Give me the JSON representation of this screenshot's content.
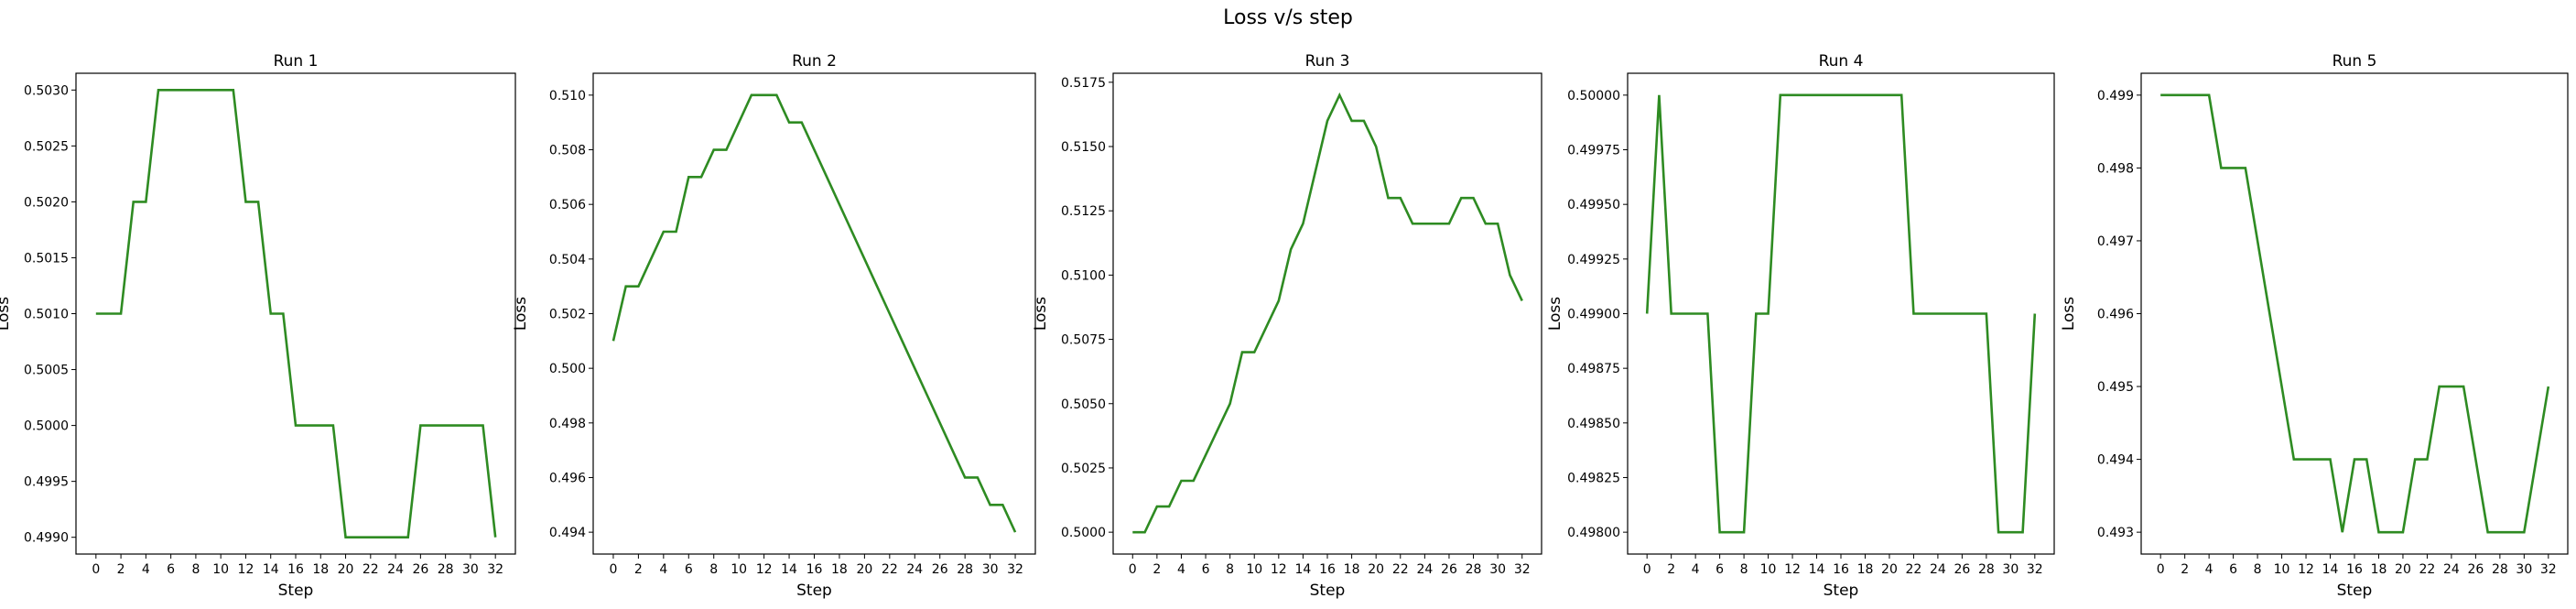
{
  "figure": {
    "title": "Loss v/s step"
  },
  "style": {
    "line_color": "#2e8b22",
    "axis_color": "#000000",
    "background": "#ffffff"
  },
  "chart_data": [
    {
      "type": "line",
      "title": "Run 1",
      "xlabel": "Step",
      "ylabel": "Loss",
      "xlim": [
        -1.6,
        33.6
      ],
      "ylim": [
        0.49885,
        0.50315
      ],
      "xticks": [
        0,
        2,
        4,
        6,
        8,
        10,
        12,
        14,
        16,
        18,
        20,
        22,
        24,
        26,
        28,
        30,
        32
      ],
      "yticks": [
        0.499,
        0.4995,
        0.5,
        0.5005,
        0.501,
        0.5015,
        0.502,
        0.5025,
        0.503
      ],
      "ytick_labels": [
        "0.4990",
        "0.4995",
        "0.5000",
        "0.5005",
        "0.5010",
        "0.5015",
        "0.5020",
        "0.5025",
        "0.5030"
      ],
      "x": [
        0,
        1,
        2,
        3,
        4,
        5,
        6,
        7,
        8,
        9,
        10,
        11,
        12,
        13,
        14,
        15,
        16,
        17,
        18,
        19,
        20,
        21,
        22,
        23,
        24,
        25,
        26,
        27,
        28,
        29,
        30,
        31,
        32
      ],
      "series": [
        {
          "values": [
            0.501,
            0.501,
            0.501,
            0.502,
            0.502,
            0.503,
            0.503,
            0.503,
            0.503,
            0.503,
            0.503,
            0.503,
            0.502,
            0.502,
            0.501,
            0.501,
            0.5,
            0.5,
            0.5,
            0.5,
            0.499,
            0.499,
            0.499,
            0.499,
            0.499,
            0.499,
            0.5,
            0.5,
            0.5,
            0.5,
            0.5,
            0.5,
            0.499
          ]
        }
      ]
    },
    {
      "type": "line",
      "title": "Run 2",
      "xlabel": "Step",
      "ylabel": "Loss",
      "xlim": [
        -1.6,
        33.6
      ],
      "ylim": [
        0.4932,
        0.5108
      ],
      "xticks": [
        0,
        2,
        4,
        6,
        8,
        10,
        12,
        14,
        16,
        18,
        20,
        22,
        24,
        26,
        28,
        30,
        32
      ],
      "yticks": [
        0.494,
        0.496,
        0.498,
        0.5,
        0.502,
        0.504,
        0.506,
        0.508,
        0.51
      ],
      "ytick_labels": [
        "0.494",
        "0.496",
        "0.498",
        "0.500",
        "0.502",
        "0.504",
        "0.506",
        "0.508",
        "0.510"
      ],
      "x": [
        0,
        1,
        2,
        3,
        4,
        5,
        6,
        7,
        8,
        9,
        10,
        11,
        12,
        13,
        14,
        15,
        16,
        17,
        18,
        19,
        20,
        21,
        22,
        23,
        24,
        25,
        26,
        27,
        28,
        29,
        30,
        31,
        32
      ],
      "series": [
        {
          "values": [
            0.501,
            0.503,
            0.503,
            0.504,
            0.505,
            0.505,
            0.507,
            0.507,
            0.508,
            0.508,
            0.509,
            0.51,
            0.51,
            0.51,
            0.509,
            0.509,
            0.508,
            0.507,
            0.506,
            0.505,
            0.504,
            0.503,
            0.502,
            0.501,
            0.5,
            0.499,
            0.498,
            0.497,
            0.496,
            0.496,
            0.495,
            0.495,
            0.494
          ]
        }
      ]
    },
    {
      "type": "line",
      "title": "Run 3",
      "xlabel": "Step",
      "ylabel": "Loss",
      "xlim": [
        -1.6,
        33.6
      ],
      "ylim": [
        0.49915,
        0.51785
      ],
      "xticks": [
        0,
        2,
        4,
        6,
        8,
        10,
        12,
        14,
        16,
        18,
        20,
        22,
        24,
        26,
        28,
        30,
        32
      ],
      "yticks": [
        0.5,
        0.5025,
        0.505,
        0.5075,
        0.51,
        0.5125,
        0.515,
        0.5175
      ],
      "ytick_labels": [
        "0.5000",
        "0.5025",
        "0.5050",
        "0.5075",
        "0.5100",
        "0.5125",
        "0.5150",
        "0.5175"
      ],
      "x": [
        0,
        1,
        2,
        3,
        4,
        5,
        6,
        7,
        8,
        9,
        10,
        11,
        12,
        13,
        14,
        15,
        16,
        17,
        18,
        19,
        20,
        21,
        22,
        23,
        24,
        25,
        26,
        27,
        28,
        29,
        30,
        31,
        32
      ],
      "series": [
        {
          "values": [
            0.5,
            0.5,
            0.501,
            0.501,
            0.502,
            0.502,
            0.503,
            0.504,
            0.505,
            0.507,
            0.507,
            0.508,
            0.509,
            0.511,
            0.512,
            0.514,
            0.516,
            0.517,
            0.516,
            0.516,
            0.515,
            0.513,
            0.513,
            0.512,
            0.512,
            0.512,
            0.512,
            0.513,
            0.513,
            0.512,
            0.512,
            0.51,
            0.509
          ]
        }
      ]
    },
    {
      "type": "line",
      "title": "Run 4",
      "xlabel": "Step",
      "ylabel": "Loss",
      "xlim": [
        -1.6,
        33.6
      ],
      "ylim": [
        0.4979,
        0.5001
      ],
      "xticks": [
        0,
        2,
        4,
        6,
        8,
        10,
        12,
        14,
        16,
        18,
        20,
        22,
        24,
        26,
        28,
        30,
        32
      ],
      "yticks": [
        0.498,
        0.49825,
        0.4985,
        0.49875,
        0.499,
        0.49925,
        0.4995,
        0.49975,
        0.5
      ],
      "ytick_labels": [
        "0.49800",
        "0.49825",
        "0.49850",
        "0.49875",
        "0.49900",
        "0.49925",
        "0.49950",
        "0.49975",
        "0.50000"
      ],
      "x": [
        0,
        1,
        2,
        3,
        4,
        5,
        6,
        7,
        8,
        9,
        10,
        11,
        12,
        13,
        14,
        15,
        16,
        17,
        18,
        19,
        20,
        21,
        22,
        23,
        24,
        25,
        26,
        27,
        28,
        29,
        30,
        31,
        32
      ],
      "series": [
        {
          "values": [
            0.499,
            0.5,
            0.499,
            0.499,
            0.499,
            0.499,
            0.498,
            0.498,
            0.498,
            0.499,
            0.499,
            0.5,
            0.5,
            0.5,
            0.5,
            0.5,
            0.5,
            0.5,
            0.5,
            0.5,
            0.5,
            0.5,
            0.499,
            0.499,
            0.499,
            0.499,
            0.499,
            0.499,
            0.499,
            0.498,
            0.498,
            0.498,
            0.499
          ]
        }
      ]
    },
    {
      "type": "line",
      "title": "Run 5",
      "xlabel": "Step",
      "ylabel": "Loss",
      "xlim": [
        -1.6,
        33.6
      ],
      "ylim": [
        0.4927,
        0.4993
      ],
      "xticks": [
        0,
        2,
        4,
        6,
        8,
        10,
        12,
        14,
        16,
        18,
        20,
        22,
        24,
        26,
        28,
        30,
        32
      ],
      "yticks": [
        0.493,
        0.494,
        0.495,
        0.496,
        0.497,
        0.498,
        0.499
      ],
      "ytick_labels": [
        "0.493",
        "0.494",
        "0.495",
        "0.496",
        "0.497",
        "0.498",
        "0.499"
      ],
      "x": [
        0,
        1,
        2,
        3,
        4,
        5,
        6,
        7,
        8,
        9,
        10,
        11,
        12,
        13,
        14,
        15,
        16,
        17,
        18,
        19,
        20,
        21,
        22,
        23,
        24,
        25,
        26,
        27,
        28,
        29,
        30,
        31,
        32
      ],
      "series": [
        {
          "values": [
            0.499,
            0.499,
            0.499,
            0.499,
            0.499,
            0.498,
            0.498,
            0.498,
            0.497,
            0.496,
            0.495,
            0.494,
            0.494,
            0.494,
            0.494,
            0.493,
            0.494,
            0.494,
            0.493,
            0.493,
            0.493,
            0.494,
            0.494,
            0.495,
            0.495,
            0.495,
            0.494,
            0.493,
            0.493,
            0.493,
            0.493,
            0.494,
            0.495
          ]
        }
      ]
    }
  ]
}
